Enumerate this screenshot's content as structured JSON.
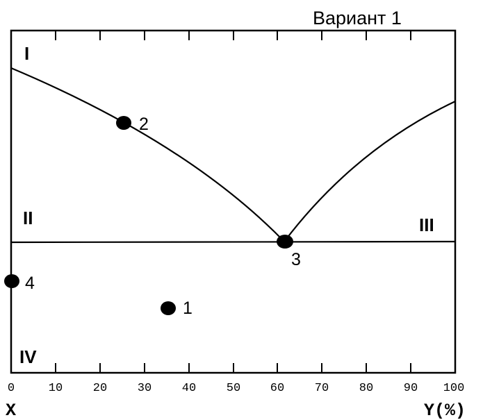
{
  "title": "Вариант 1",
  "regions": [
    {
      "id": "I",
      "label": "I"
    },
    {
      "id": "II",
      "label": "II"
    },
    {
      "id": "III",
      "label": "III"
    },
    {
      "id": "IV",
      "label": "IV"
    }
  ],
  "axis": {
    "x_name": "X",
    "y_name": "Y(%)",
    "ticks": [
      "0",
      "10",
      "20",
      "30",
      "40",
      "50",
      "60",
      "70",
      "80",
      "90",
      "100"
    ]
  },
  "points": [
    {
      "label": "1"
    },
    {
      "label": "2"
    },
    {
      "label": "3"
    },
    {
      "label": "4"
    }
  ]
}
